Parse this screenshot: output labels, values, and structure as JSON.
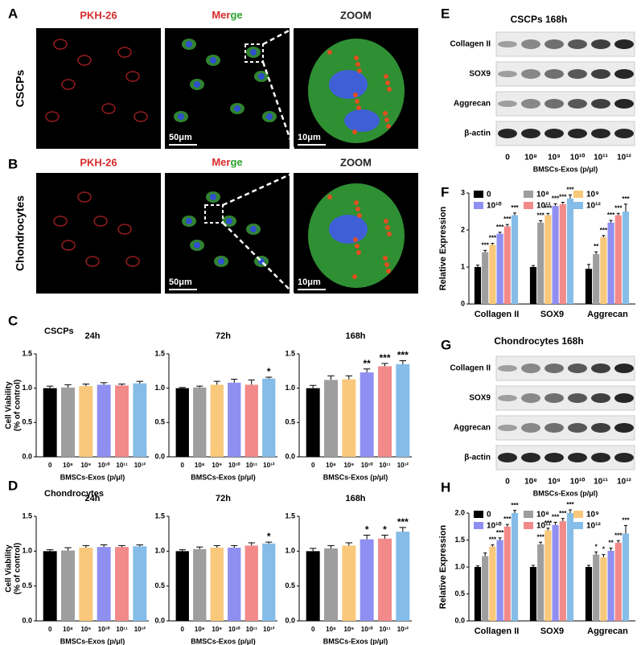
{
  "figure": {
    "letters": [
      "A",
      "B",
      "C",
      "D",
      "E",
      "F",
      "G",
      "H"
    ],
    "imaging": {
      "stains": [
        "PKH-26",
        [
          "Mer",
          "ge"
        ],
        "ZOOM"
      ],
      "rows": [
        {
          "label": "CSCPs",
          "scale_bars": [
            "50μm",
            "10μm"
          ]
        },
        {
          "label": "Chondrocytes",
          "scale_bars": [
            "50μm",
            "10μm"
          ]
        }
      ]
    },
    "blots": [
      {
        "title": "CSCPs   168h",
        "proteins": [
          "Collagen II",
          "SOX9",
          "Aggrecan",
          "β-actin"
        ],
        "lanes": [
          "0",
          "10⁸",
          "10⁹",
          "10¹⁰",
          "10¹¹",
          "10¹²"
        ],
        "xlabel": "BMSCs-Exos (p/μl)"
      },
      {
        "title": "Chondrocytes   168h",
        "proteins": [
          "Collagen II",
          "SOX9",
          "Aggrecan",
          "β-actin"
        ],
        "lanes": [
          "0",
          "10⁸",
          "10⁹",
          "10¹⁰",
          "10¹¹",
          "10¹²"
        ],
        "xlabel": "BMSCs-Exos (p/μl)"
      }
    ]
  },
  "chart_data": [
    {
      "type": "bar",
      "subtitle": "CSCPs",
      "title": "24h",
      "categories": [
        "0",
        "10⁸",
        "10⁹",
        "10¹⁰",
        "10¹¹",
        "10¹²"
      ],
      "values": [
        1.0,
        1.01,
        1.03,
        1.05,
        1.04,
        1.07
      ],
      "errors": [
        0.03,
        0.04,
        0.03,
        0.03,
        0.02,
        0.03
      ],
      "annotations": [
        null,
        null,
        null,
        null,
        null,
        null
      ],
      "colors": [
        "#000000",
        "#9e9e9e",
        "#f9c87a",
        "#8f8ff2",
        "#f28a8a",
        "#86bde8"
      ],
      "ylim": [
        0,
        1.5
      ],
      "yticks": [
        {
          "value": 0,
          "label": "0.0"
        },
        0.5,
        {
          "value": 1,
          "label": "1.0"
        },
        1.5
      ],
      "xlabel": "BMSCs-Exos (p/μl)",
      "ylabel": [
        "Cell Viability",
        "(% of control)"
      ]
    },
    {
      "type": "bar",
      "title": "72h",
      "categories": [
        "0",
        "10⁸",
        "10⁹",
        "10¹⁰",
        "10¹¹",
        "10¹²"
      ],
      "values": [
        1.0,
        1.01,
        1.05,
        1.08,
        1.05,
        1.14
      ],
      "errors": [
        0.01,
        0.02,
        0.05,
        0.05,
        0.07,
        0.02
      ],
      "annotations": [
        null,
        null,
        null,
        null,
        null,
        "*"
      ],
      "colors": [
        "#000000",
        "#9e9e9e",
        "#f9c87a",
        "#8f8ff2",
        "#f28a8a",
        "#86bde8"
      ],
      "ylim": [
        0,
        1.5
      ],
      "yticks": [
        {
          "value": 0,
          "label": "0.0"
        },
        0.5,
        {
          "value": 1,
          "label": "1.0"
        },
        1.5
      ],
      "xlabel": "BMSCs-Exos (p/μl)"
    },
    {
      "type": "bar",
      "title": "168h",
      "categories": [
        "0",
        "10⁸",
        "10⁹",
        "10¹⁰",
        "10¹¹",
        "10¹²"
      ],
      "values": [
        1.0,
        1.12,
        1.13,
        1.23,
        1.32,
        1.35
      ],
      "errors": [
        0.04,
        0.06,
        0.05,
        0.05,
        0.04,
        0.05
      ],
      "annotations": [
        null,
        null,
        null,
        "**",
        "***",
        "***"
      ],
      "colors": [
        "#000000",
        "#9e9e9e",
        "#f9c87a",
        "#8f8ff2",
        "#f28a8a",
        "#86bde8"
      ],
      "ylim": [
        0,
        1.5
      ],
      "yticks": [
        {
          "value": 0,
          "label": "0.0"
        },
        0.5,
        {
          "value": 1,
          "label": "1.0"
        },
        1.5
      ],
      "xlabel": "BMSCs-Exos (p/μl)"
    },
    {
      "type": "bar",
      "subtitle": "Chondrocytes",
      "title": "24h",
      "categories": [
        "0",
        "10⁸",
        "10⁹",
        "10¹⁰",
        "10¹¹",
        "10¹²"
      ],
      "values": [
        1.0,
        1.01,
        1.05,
        1.06,
        1.06,
        1.07
      ],
      "errors": [
        0.02,
        0.04,
        0.03,
        0.03,
        0.02,
        0.02
      ],
      "annotations": [
        null,
        null,
        null,
        null,
        null,
        null
      ],
      "colors": [
        "#000000",
        "#9e9e9e",
        "#f9c87a",
        "#8f8ff2",
        "#f28a8a",
        "#86bde8"
      ],
      "ylim": [
        0,
        1.5
      ],
      "yticks": [
        {
          "value": 0,
          "label": "0.0"
        },
        0.5,
        {
          "value": 1,
          "label": "1.0"
        },
        1.5
      ],
      "xlabel": "BMSCs-Exos (p/μl)",
      "ylabel": [
        "Cell Viability",
        "(% of control)"
      ]
    },
    {
      "type": "bar",
      "title": "72h",
      "categories": [
        "0",
        "10⁸",
        "10⁹",
        "10¹⁰",
        "10¹¹",
        "10¹²"
      ],
      "values": [
        1.0,
        1.03,
        1.05,
        1.05,
        1.08,
        1.11
      ],
      "errors": [
        0.02,
        0.03,
        0.03,
        0.03,
        0.04,
        0.02
      ],
      "annotations": [
        null,
        null,
        null,
        null,
        null,
        "*"
      ],
      "colors": [
        "#000000",
        "#9e9e9e",
        "#f9c87a",
        "#8f8ff2",
        "#f28a8a",
        "#86bde8"
      ],
      "ylim": [
        0,
        1.5
      ],
      "yticks": [
        {
          "value": 0,
          "label": "0.0"
        },
        0.5,
        {
          "value": 1,
          "label": "1.0"
        },
        1.5
      ],
      "xlabel": "BMSCs-Exos (p/μl)"
    },
    {
      "type": "bar",
      "title": "168h",
      "categories": [
        "0",
        "10⁸",
        "10⁹",
        "10¹⁰",
        "10¹¹",
        "10¹²"
      ],
      "values": [
        1.0,
        1.04,
        1.08,
        1.17,
        1.18,
        1.28
      ],
      "errors": [
        0.04,
        0.04,
        0.04,
        0.06,
        0.05,
        0.06
      ],
      "annotations": [
        null,
        null,
        null,
        "*",
        "*",
        "***"
      ],
      "colors": [
        "#000000",
        "#9e9e9e",
        "#f9c87a",
        "#8f8ff2",
        "#f28a8a",
        "#86bde8"
      ],
      "ylim": [
        0,
        1.5
      ],
      "yticks": [
        {
          "value": 0,
          "label": "0.0"
        },
        0.5,
        {
          "value": 1,
          "label": "1.0"
        },
        1.5
      ],
      "xlabel": "BMSCs-Exos (p/μl)"
    },
    {
      "type": "grouped_bar",
      "categories": [
        "Collagen II",
        "SOX9",
        "Aggrecan"
      ],
      "ylim": [
        0,
        3
      ],
      "yticks": [
        0,
        1,
        2,
        3
      ],
      "ylabel": "Relative Expression",
      "legend": "upper left",
      "series": [
        {
          "name": "0",
          "color": "#000000",
          "values": [
            1.0,
            1.0,
            0.95
          ],
          "errors": [
            0.05,
            0.04,
            0.12
          ],
          "annotations": [
            null,
            null,
            null
          ]
        },
        {
          "name": "10⁸",
          "color": "#9e9e9e",
          "values": [
            1.4,
            2.2,
            1.35
          ],
          "errors": [
            0.05,
            0.05,
            0.06
          ],
          "annotations": [
            "***",
            "***",
            "**"
          ]
        },
        {
          "name": "10⁹",
          "color": "#f9c87a",
          "values": [
            1.6,
            2.4,
            1.8
          ],
          "errors": [
            0.04,
            0.05,
            0.05
          ],
          "annotations": [
            "***",
            "***",
            "***"
          ]
        },
        {
          "name": "10¹⁰",
          "color": "#8f8ff2",
          "values": [
            1.9,
            2.65,
            2.2
          ],
          "errors": [
            0.04,
            0.06,
            0.06
          ],
          "annotations": [
            "***",
            "***",
            "***"
          ]
        },
        {
          "name": "10¹¹",
          "color": "#f28a8a",
          "values": [
            2.1,
            2.7,
            2.4
          ],
          "errors": [
            0.05,
            0.05,
            0.05
          ],
          "annotations": [
            "***",
            "***",
            "***"
          ]
        },
        {
          "name": "10¹²",
          "color": "#86bde8",
          "values": [
            2.4,
            2.85,
            2.5
          ],
          "errors": [
            0.06,
            0.1,
            0.2
          ],
          "annotations": [
            "***",
            "***",
            "***"
          ]
        }
      ]
    },
    {
      "type": "grouped_bar",
      "categories": [
        "Collagen II",
        "SOX9",
        "Aggrecan"
      ],
      "ylim": [
        0,
        2
      ],
      "yticks": [
        {
          "value": 0,
          "label": "0.0"
        },
        0.5,
        {
          "value": 1,
          "label": "1.0"
        },
        1.5,
        {
          "value": 2,
          "label": "2.0"
        }
      ],
      "ylabel": "Relative Expression",
      "legend": "upper left",
      "series": [
        {
          "name": "0",
          "color": "#000000",
          "values": [
            1.0,
            1.0,
            1.0
          ],
          "errors": [
            0.02,
            0.03,
            0.03
          ],
          "annotations": [
            null,
            null,
            null
          ]
        },
        {
          "name": "10⁸",
          "color": "#9e9e9e",
          "values": [
            1.2,
            1.42,
            1.23
          ],
          "errors": [
            0.06,
            0.04,
            0.05
          ],
          "annotations": [
            null,
            "***",
            "*"
          ]
        },
        {
          "name": "10⁹",
          "color": "#f9c87a",
          "values": [
            1.38,
            1.68,
            1.18
          ],
          "errors": [
            0.03,
            0.04,
            0.05
          ],
          "annotations": [
            "***",
            "***",
            "*"
          ]
        },
        {
          "name": "10¹⁰",
          "color": "#8f8ff2",
          "values": [
            1.5,
            1.78,
            1.3
          ],
          "errors": [
            0.04,
            0.05,
            0.05
          ],
          "annotations": [
            "***",
            "***",
            "**"
          ]
        },
        {
          "name": "10¹¹",
          "color": "#f28a8a",
          "values": [
            1.75,
            1.85,
            1.45
          ],
          "errors": [
            0.04,
            0.05,
            0.04
          ],
          "annotations": [
            "***",
            "***",
            "***"
          ]
        },
        {
          "name": "10¹²",
          "color": "#86bde8",
          "values": [
            2.0,
            2.0,
            1.62
          ],
          "errors": [
            0.05,
            0.06,
            0.15
          ],
          "annotations": [
            "***",
            "***",
            "***"
          ]
        }
      ]
    }
  ]
}
